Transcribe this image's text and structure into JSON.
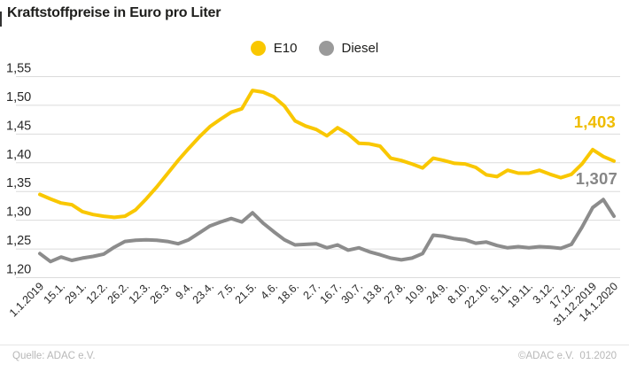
{
  "header": {
    "title": "Kraftstoffpreise in Euro pro Liter"
  },
  "legend": {
    "position": "top-center",
    "items": [
      {
        "label": "E10",
        "color": "#f9c700"
      },
      {
        "label": "Diesel",
        "color": "#9a9a9a"
      }
    ]
  },
  "chart_data": {
    "type": "line",
    "title": "Kraftstoffpreise in Euro pro Liter",
    "ylabel": "Euro pro Liter",
    "ylim": [
      1.2,
      1.55
    ],
    "y_step": 0.05,
    "grid": "horizontal",
    "y_tick_labels": [
      "1,55",
      "1,50",
      "1,45",
      "1,40",
      "1,35",
      "1,30",
      "1,25",
      "1,20"
    ],
    "x_tick_labels": [
      "1.1.2019",
      "15.1.",
      "29.1.",
      "12.2.",
      "26.2.",
      "12.3.",
      "26.3.",
      "9.4.",
      "23.4.",
      "7.5.",
      "21.5.",
      "4.6.",
      "18.6.",
      "2.7.",
      "16.7.",
      "30.7.",
      "13.8.",
      "27.8.",
      "10.9.",
      "24.9.",
      "8.10.",
      "22.10.",
      "5.11.",
      "19.11.",
      "3.12.",
      "17.12.",
      "31.12.2019",
      "14.1.2020"
    ],
    "x_tick_rotation": -45,
    "points_per_tick": 2,
    "series": [
      {
        "name": "E10",
        "color": "#f9c700",
        "end_label": "1,403",
        "end_value": 1.403,
        "values": [
          1.345,
          1.337,
          1.33,
          1.327,
          1.315,
          1.31,
          1.307,
          1.305,
          1.307,
          1.318,
          1.337,
          1.358,
          1.381,
          1.404,
          1.425,
          1.445,
          1.463,
          1.476,
          1.488,
          1.494,
          1.526,
          1.523,
          1.515,
          1.499,
          1.473,
          1.464,
          1.458,
          1.447,
          1.461,
          1.45,
          1.434,
          1.433,
          1.429,
          1.408,
          1.404,
          1.398,
          1.391,
          1.408,
          1.404,
          1.399,
          1.398,
          1.392,
          1.379,
          1.376,
          1.387,
          1.382,
          1.382,
          1.387,
          1.38,
          1.374,
          1.38,
          1.398,
          1.423,
          1.411,
          1.403
        ]
      },
      {
        "name": "Diesel",
        "color": "#8c8c8c",
        "end_label": "1,307",
        "end_value": 1.307,
        "values": [
          1.242,
          1.228,
          1.236,
          1.23,
          1.234,
          1.237,
          1.241,
          1.253,
          1.263,
          1.265,
          1.266,
          1.265,
          1.263,
          1.259,
          1.266,
          1.278,
          1.29,
          1.297,
          1.303,
          1.297,
          1.313,
          1.295,
          1.28,
          1.266,
          1.257,
          1.258,
          1.259,
          1.252,
          1.257,
          1.248,
          1.252,
          1.245,
          1.24,
          1.234,
          1.231,
          1.234,
          1.242,
          1.274,
          1.272,
          1.268,
          1.266,
          1.26,
          1.262,
          1.256,
          1.252,
          1.254,
          1.252,
          1.254,
          1.253,
          1.251,
          1.258,
          1.288,
          1.322,
          1.336,
          1.307
        ]
      }
    ]
  },
  "footer": {
    "source": "Quelle: ADAC e.V.",
    "copyright": "©ADAC e.V.  01.2020"
  }
}
